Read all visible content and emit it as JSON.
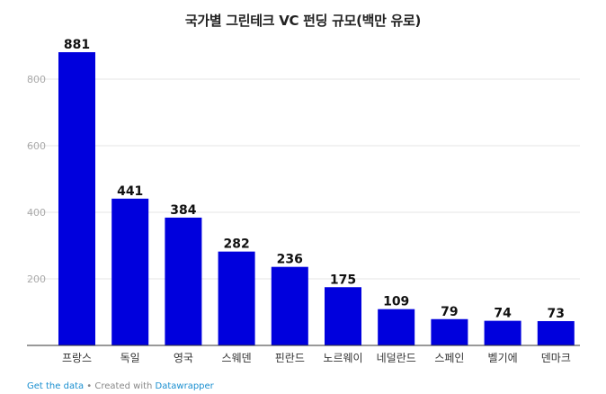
{
  "chart_data": {
    "type": "bar",
    "title": "국가별 그린테크 VC 펀딩 규모(백만 유로)",
    "categories": [
      "프랑스",
      "독일",
      "영국",
      "스웨덴",
      "핀란드",
      "노르웨이",
      "네덜란드",
      "스페인",
      "벨기에",
      "덴마크"
    ],
    "values": [
      881,
      441,
      384,
      282,
      236,
      175,
      109,
      79,
      74,
      73
    ],
    "y_ticks": [
      200,
      400,
      600,
      800
    ],
    "ylim": [
      0,
      900
    ],
    "xlabel": "",
    "ylabel": "",
    "grid": true,
    "legend": "none",
    "bar_color": "#0000dd",
    "grid_color": "#e4e4e4",
    "tick_label_color": "#aaaaaa"
  },
  "footer": {
    "get_data": "Get the data",
    "separator": " • Created with ",
    "tool": "Datawrapper"
  }
}
